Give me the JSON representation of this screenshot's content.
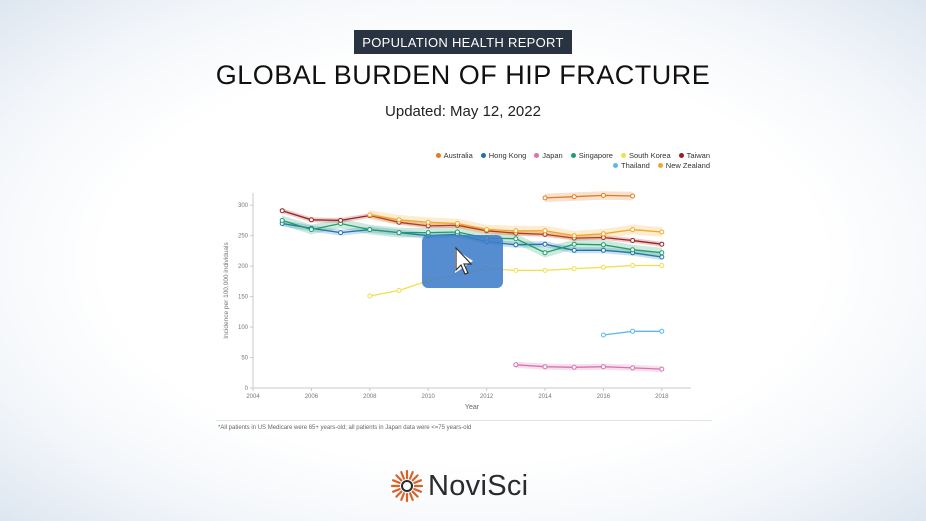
{
  "header": {
    "badge": "POPULATION HEALTH REPORT",
    "title": "GLOBAL BURDEN OF HIP FRACTURE",
    "updated": "Updated: May 12, 2022"
  },
  "footnote": "*All patients in US Medicare were 65+ years-old; all patients in Japan data were <=75 years-old",
  "logo": {
    "name": "NoviSci",
    "accent": "#d9622b"
  },
  "video": {
    "play_icon": "play-icon",
    "accent": "#3f7dc9"
  },
  "chart_data": {
    "type": "line",
    "xlabel": "Year",
    "ylabel": "Incidence per 100,000 individuals",
    "xlim": [
      2004,
      2019
    ],
    "ylim": [
      0,
      320
    ],
    "xticks": [
      "2004",
      "2006",
      "2008",
      "2010",
      "2012",
      "2014",
      "2016",
      "2018"
    ],
    "yticks": [
      "0",
      "50",
      "100",
      "150",
      "200",
      "250",
      "300"
    ],
    "grid": false,
    "legend_position": "top-right",
    "series": [
      {
        "name": "Australia",
        "color": "#e07b24",
        "x": [
          2014,
          2015,
          2016,
          2017
        ],
        "y": [
          312,
          314,
          316,
          315
        ],
        "band": 7
      },
      {
        "name": "Hong Kong",
        "color": "#1f6fb5",
        "x": [
          2005,
          2006,
          2007,
          2008,
          2009,
          2010,
          2011,
          2012,
          2013,
          2014,
          2015,
          2016,
          2017,
          2018
        ],
        "y": [
          270,
          262,
          255,
          260,
          255,
          250,
          252,
          240,
          235,
          236,
          226,
          226,
          222,
          215
        ],
        "band": 5
      },
      {
        "name": "Japan",
        "color": "#d774b0",
        "x": [
          2013,
          2014,
          2015,
          2016,
          2017,
          2018
        ],
        "y": [
          38,
          35,
          34,
          35,
          33,
          31
        ],
        "band": 5
      },
      {
        "name": "Singapore",
        "color": "#1f9e6b",
        "x": [
          2005,
          2006,
          2007,
          2008,
          2009,
          2010,
          2011,
          2012,
          2013,
          2014,
          2015,
          2016,
          2017,
          2018
        ],
        "y": [
          275,
          260,
          270,
          260,
          255,
          255,
          256,
          246,
          245,
          222,
          236,
          235,
          227,
          222
        ],
        "band": 8
      },
      {
        "name": "South Korea",
        "color": "#f0e04a",
        "x": [
          2008,
          2009,
          2010,
          2011,
          2012,
          2013,
          2014,
          2015,
          2016,
          2017,
          2018
        ],
        "y": [
          151,
          160,
          176,
          186,
          196,
          193,
          193,
          196,
          198,
          201,
          201
        ],
        "band": 0
      },
      {
        "name": "Taiwan",
        "color": "#9e1f1f",
        "x": [
          2005,
          2006,
          2007,
          2008,
          2009,
          2010,
          2011,
          2012,
          2013,
          2014,
          2015,
          2016,
          2017,
          2018
        ],
        "y": [
          291,
          276,
          275,
          283,
          272,
          266,
          267,
          258,
          254,
          252,
          246,
          247,
          242,
          236
        ],
        "band": 4
      },
      {
        "name": "Thailand",
        "color": "#5bb8ee",
        "x": [
          2016,
          2017,
          2018
        ],
        "y": [
          87,
          93,
          93
        ],
        "band": 0
      },
      {
        "name": "New Zealand",
        "color": "#f2a72a",
        "x": [
          2008,
          2009,
          2010,
          2011,
          2012,
          2013,
          2014,
          2015,
          2016,
          2017,
          2018
        ],
        "y": [
          284,
          276,
          272,
          270,
          260,
          258,
          258,
          250,
          253,
          260,
          256
        ],
        "band": 8
      }
    ]
  }
}
